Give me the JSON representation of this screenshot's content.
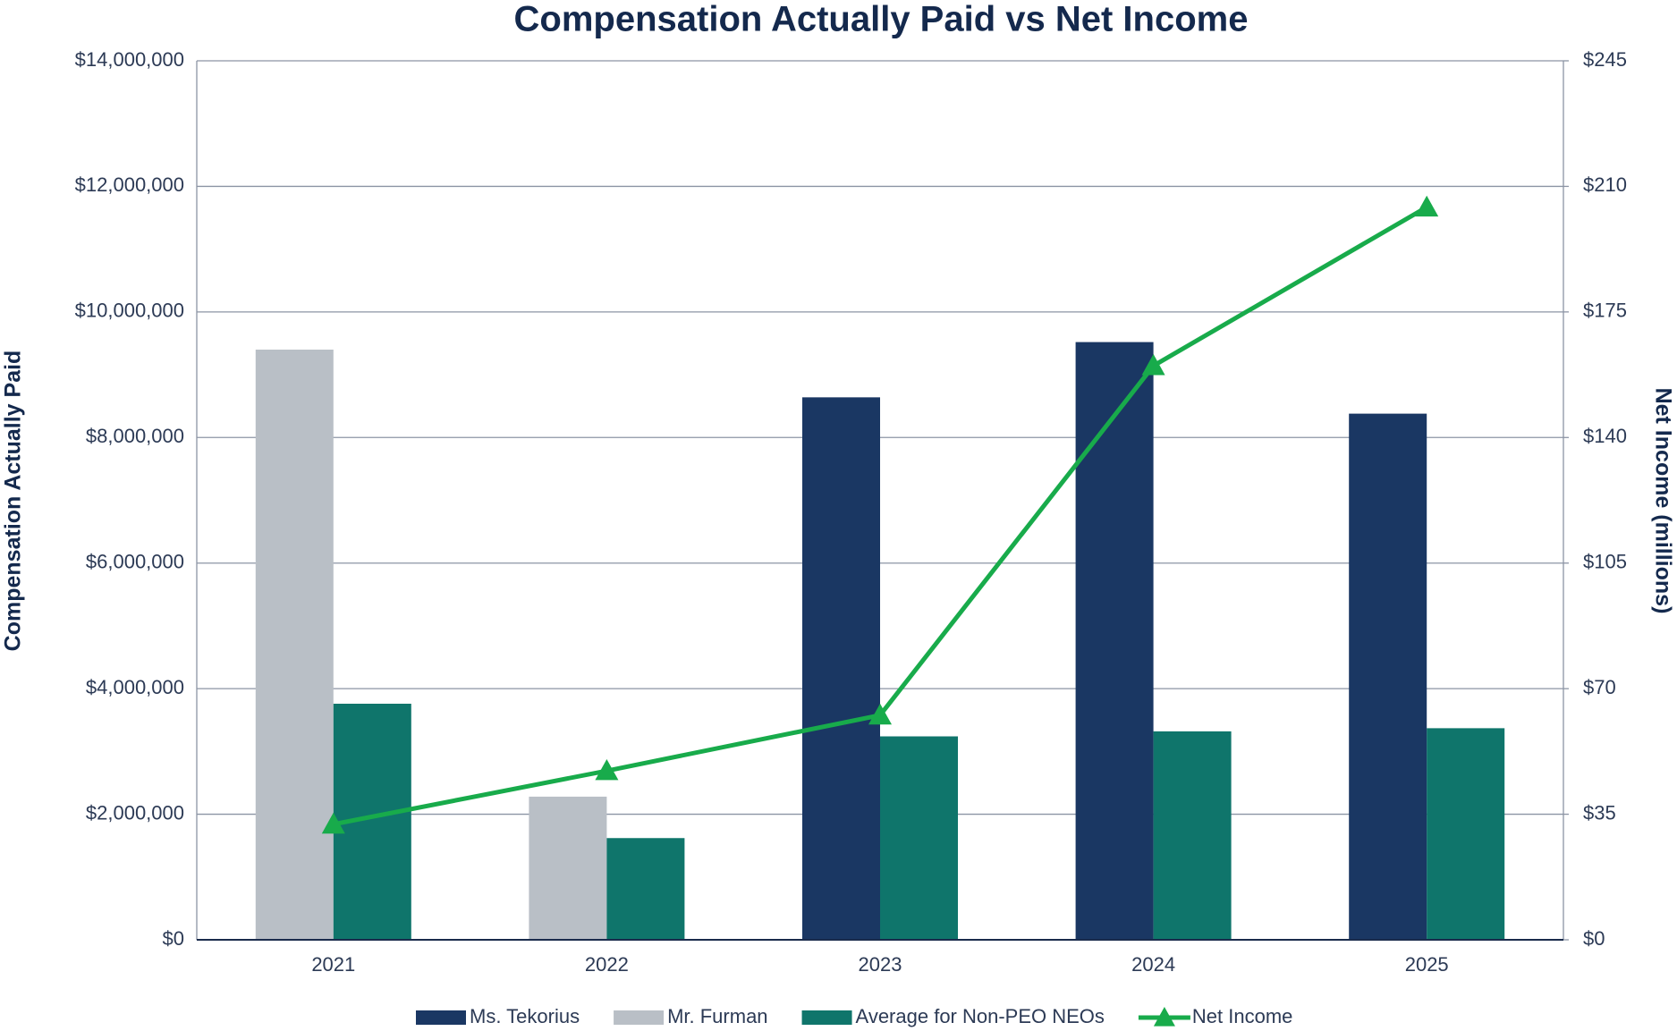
{
  "chart_data": {
    "type": "bar",
    "title": "Compensation Actually Paid vs Net Income",
    "y_label": "Compensation Actually Paid",
    "y2_label": "Net Income (millions)",
    "categories": [
      "2021",
      "2022",
      "2023",
      "2024",
      "2025"
    ],
    "series": [
      {
        "name": "Ms. Tekorius",
        "color": "#1a3763",
        "type": "bar",
        "values": [
          null,
          null,
          8640000,
          9520000,
          8380000
        ]
      },
      {
        "name": "Mr. Furman",
        "color": "#b9bfc6",
        "type": "bar",
        "values": [
          9400000,
          2280000,
          null,
          null,
          null
        ]
      },
      {
        "name": "Average for Non-PEO NEOs",
        "color": "#0f756b",
        "type": "bar",
        "values": [
          3760000,
          1620000,
          3240000,
          3320000,
          3370000
        ]
      },
      {
        "name": "Net Income",
        "color": "#18ab4b",
        "type": "line",
        "axis": "y2",
        "values": [
          32.2,
          47.1,
          62.6,
          160,
          204.2
        ]
      }
    ],
    "ylim": [
      0,
      14000000
    ],
    "yticks": [
      {
        "value": 0,
        "label": "$0"
      },
      {
        "value": 2000000,
        "label": "$2,000,000"
      },
      {
        "value": 4000000,
        "label": "$4,000,000"
      },
      {
        "value": 6000000,
        "label": "$6,000,000"
      },
      {
        "value": 8000000,
        "label": "$8,000,000"
      },
      {
        "value": 10000000,
        "label": "$10,000,000"
      },
      {
        "value": 12000000,
        "label": "$12,000,000"
      },
      {
        "value": 14000000,
        "label": "$14,000,000"
      }
    ],
    "y2lim": [
      0,
      245
    ],
    "y2ticks": [
      {
        "value": 0,
        "label": "$0"
      },
      {
        "value": 35,
        "label": "$35"
      },
      {
        "value": 70,
        "label": "$70"
      },
      {
        "value": 105,
        "label": "$105"
      },
      {
        "value": 140,
        "label": "$140"
      },
      {
        "value": 175,
        "label": "$175"
      },
      {
        "value": 210,
        "label": "$210"
      },
      {
        "value": 245,
        "label": "$245"
      }
    ],
    "grid": true
  }
}
